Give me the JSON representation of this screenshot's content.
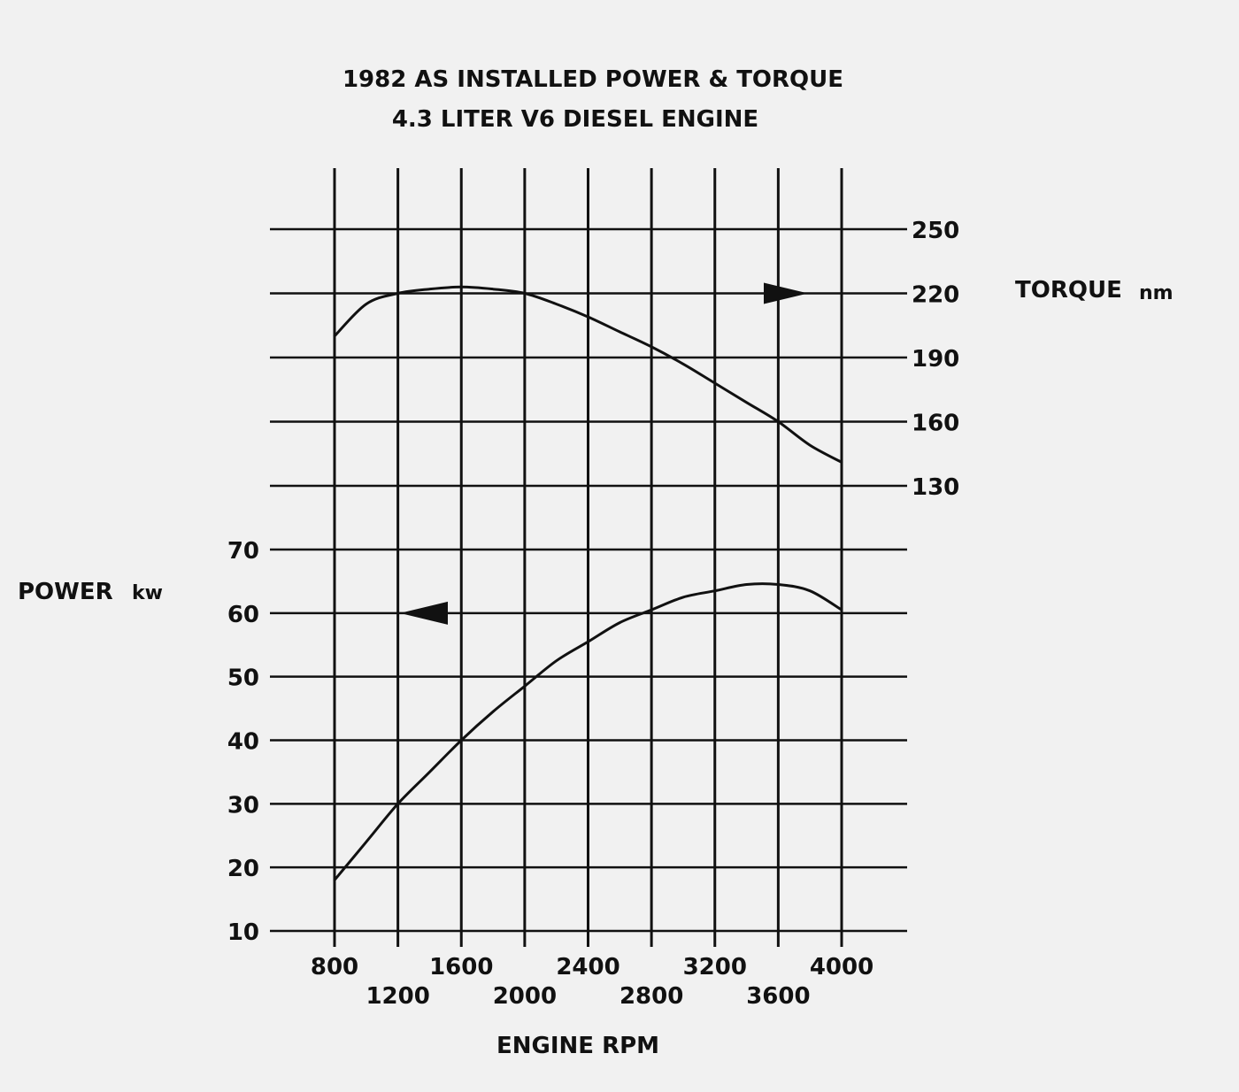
{
  "chart_data": {
    "type": "line",
    "title": "1982 AS INSTALLED POWER & TORQUE",
    "subtitle": "4.3 LITER V6 DIESEL ENGINE",
    "xlabel": "ENGINE RPM",
    "xlim": [
      800,
      4000
    ],
    "x_ticks_upper": [
      "800",
      "1600",
      "2400",
      "3200",
      "4000"
    ],
    "x_ticks_lower": [
      "1200",
      "2000",
      "2800",
      "3600"
    ],
    "y_left": {
      "label": "POWER",
      "unit": "kw",
      "ylim": [
        10,
        70
      ],
      "ticks": [
        "10",
        "20",
        "30",
        "40",
        "50",
        "60",
        "70"
      ]
    },
    "y_right": {
      "label": "TORQUE",
      "unit": "nm",
      "ylim": [
        130,
        250
      ],
      "ticks": [
        "130",
        "160",
        "190",
        "220",
        "250"
      ]
    },
    "grid": true,
    "series": [
      {
        "axis": "right",
        "x": [
          800,
          1000,
          1200,
          1400,
          1600,
          1800,
          2000,
          2200,
          2400,
          2600,
          2800,
          3000,
          3200,
          3400,
          3600,
          3800,
          4000
        ],
        "values": [
          200,
          215,
          220,
          222,
          223,
          222,
          220,
          215,
          209,
          202,
          195,
          187,
          178,
          169,
          160,
          149,
          141
        ]
      },
      {
        "axis": "left",
        "x": [
          800,
          1000,
          1200,
          1400,
          1600,
          1800,
          2000,
          2200,
          2400,
          2600,
          2800,
          3000,
          3200,
          3400,
          3600,
          3800,
          4000
        ],
        "values": [
          18,
          24,
          30,
          35,
          40,
          44.5,
          48.5,
          52.5,
          55.5,
          58.5,
          60.5,
          62.5,
          63.5,
          64.5,
          64.5,
          63.5,
          60.5
        ]
      }
    ]
  }
}
